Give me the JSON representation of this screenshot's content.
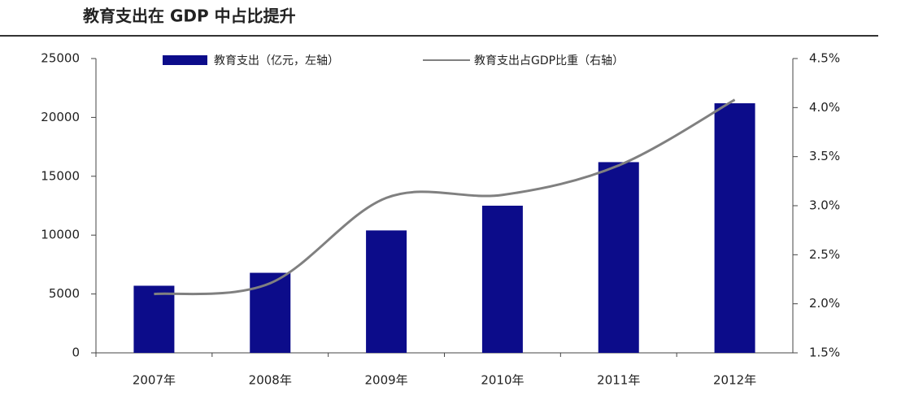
{
  "chart_data": {
    "type": "bar-line",
    "title": "教育支出在 GDP 中占比提升",
    "categories": [
      "2007年",
      "2008年",
      "2009年",
      "2010年",
      "2011年",
      "2012年"
    ],
    "series": [
      {
        "name": "教育支出（亿元，左轴）",
        "type": "bar",
        "color": "#0c0c8a",
        "values": [
          5700,
          6800,
          10400,
          12500,
          16200,
          21200
        ]
      },
      {
        "name": "教育支出占GDP比重（右轴）",
        "type": "line",
        "axis": "y2",
        "color": "#808080",
        "values": [
          2.1,
          2.21,
          3.08,
          3.11,
          3.41,
          4.08
        ]
      }
    ],
    "ylim": [
      0,
      25000
    ],
    "yticks": [
      0,
      5000,
      10000,
      15000,
      20000,
      25000
    ],
    "y2lim": [
      1.5,
      4.5
    ],
    "y2ticks": [
      {
        "value": 1.5,
        "label": "1.5%"
      },
      {
        "value": 2.0,
        "label": "2.0%"
      },
      {
        "value": 2.5,
        "label": "2.5%"
      },
      {
        "value": 3.0,
        "label": "3.0%"
      },
      {
        "value": 3.5,
        "label": "3.5%"
      },
      {
        "value": 4.0,
        "label": "4.0%"
      },
      {
        "value": 4.5,
        "label": "4.5%"
      }
    ],
    "grid": false,
    "legend": "top"
  }
}
